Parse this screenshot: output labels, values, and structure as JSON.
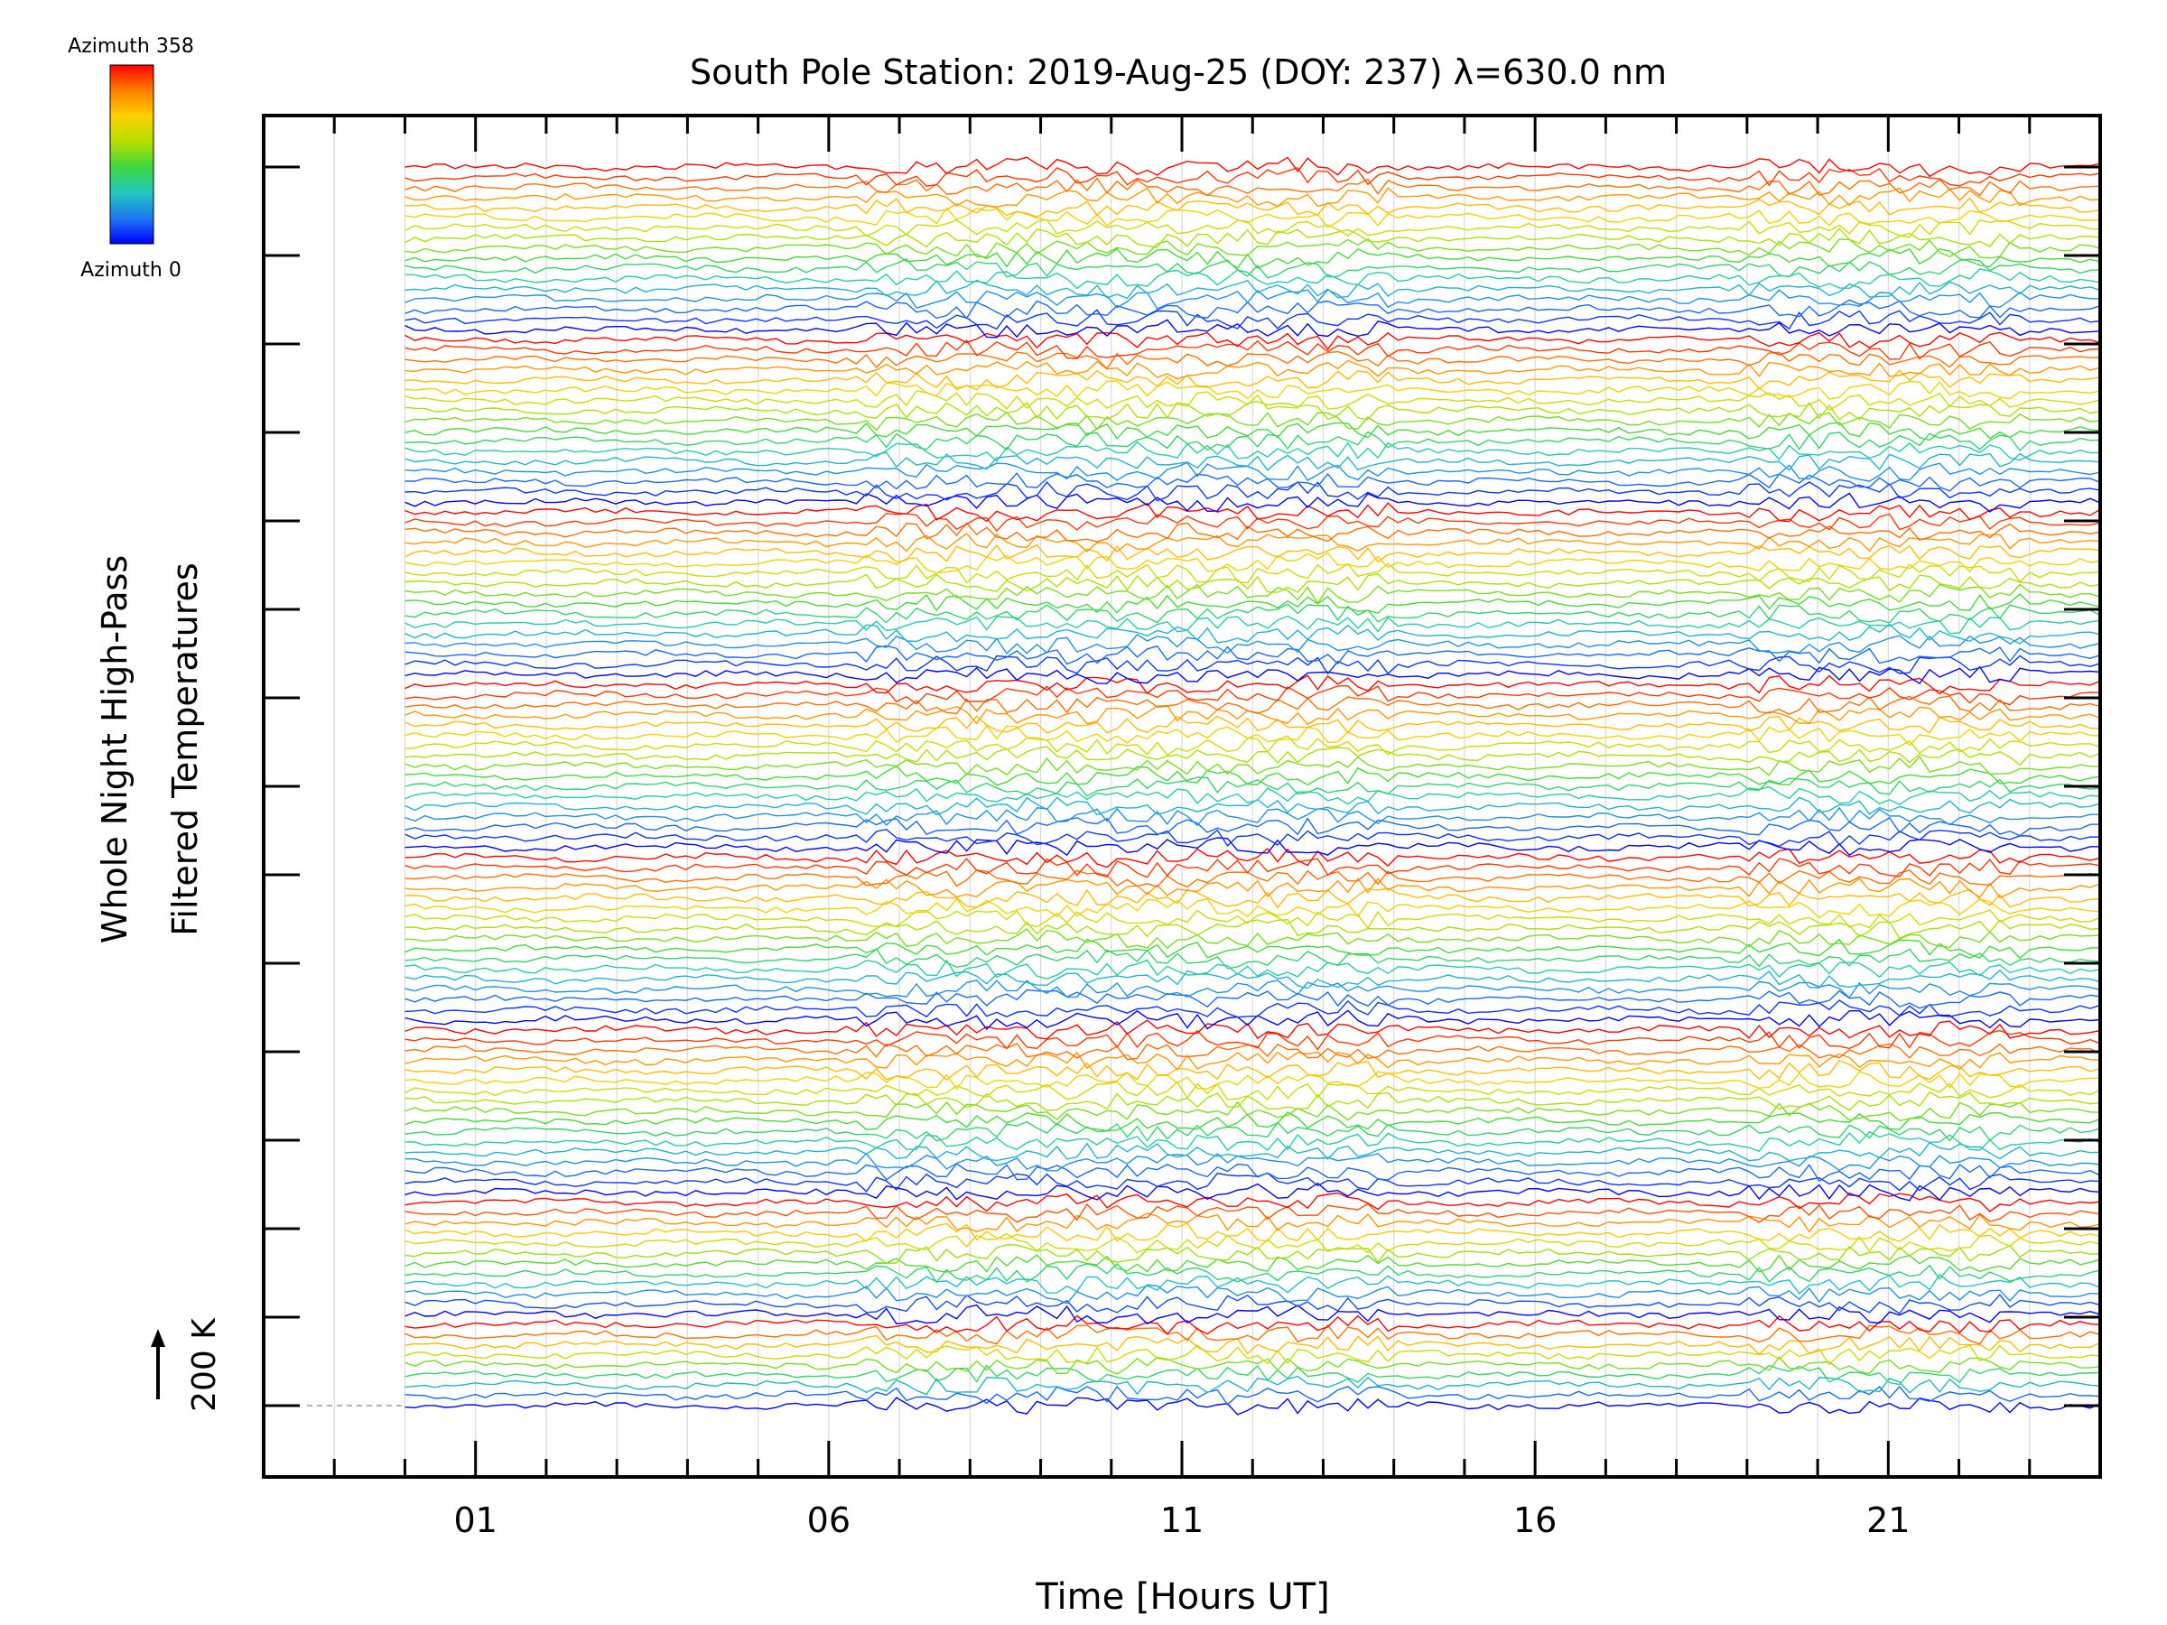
{
  "colorbar": {
    "top_label": "Azimuth 358",
    "bottom_label": "Azimuth 0",
    "colors": [
      "#ff0000",
      "#ff7f00",
      "#ffd000",
      "#b4e000",
      "#3ed83e",
      "#20c8c0",
      "#1e78f0",
      "#0000ff"
    ]
  },
  "chart_data": {
    "type": "line",
    "title": "South Pole Station: 2019-Aug-25 (DOY: 237) λ=630.0 nm",
    "xlabel": "Time [Hours UT]",
    "ylabel_line1": "Whole Night High-Pass",
    "ylabel_line2": "Filtered Temperatures",
    "scale_label": "200 K",
    "xlim": [
      -2,
      24
    ],
    "data_start": 0,
    "data_end": 24,
    "x_tick_labels": [
      "01",
      "06",
      "11",
      "16",
      "21"
    ],
    "x_tick_values": [
      1,
      6,
      11,
      16,
      21
    ],
    "minor_tick_step": 1,
    "y_ticks_count": 15,
    "grid": true,
    "series_description": {
      "groups": 8,
      "azimuth_min": 0,
      "azimuth_max": 358
    },
    "group_traces": [
      17,
      17,
      17,
      17,
      17,
      17,
      12,
      9
    ],
    "noise_quiet_window": [
      0,
      6
    ],
    "noise_active_windows": [
      [
        6.5,
        14
      ],
      [
        19,
        23
      ]
    ]
  }
}
